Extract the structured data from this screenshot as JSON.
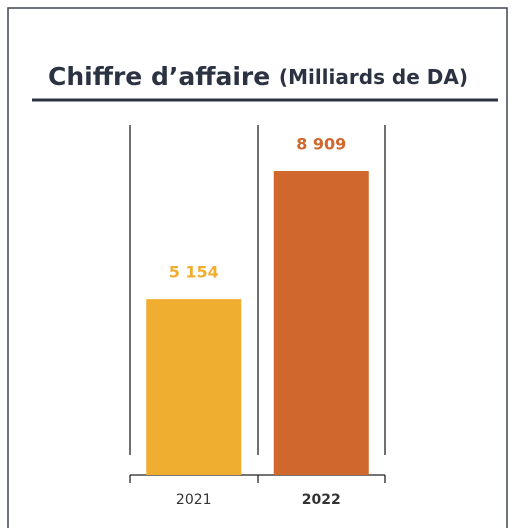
{
  "chart_data": {
    "type": "bar",
    "title": "Chiffre d’affaire",
    "title_unit": "(Milliards de DA)",
    "categories": [
      "2021",
      "2022"
    ],
    "values": [
      5154,
      8909
    ],
    "value_labels": [
      "5 154",
      "8 909"
    ],
    "colors": [
      "#f0ae30",
      "#d0672d"
    ]
  }
}
